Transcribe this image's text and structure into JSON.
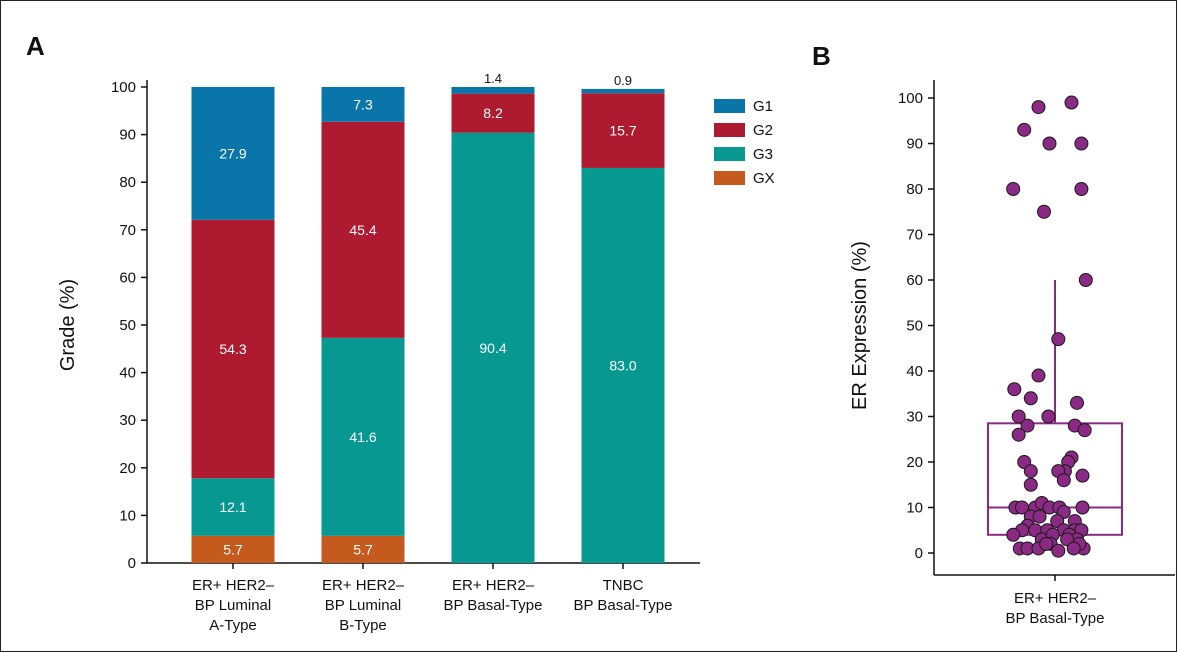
{
  "colors": {
    "G1": "#0a75a8",
    "G2": "#ae1a2f",
    "G3": "#079991",
    "GX": "#c55a1e",
    "scatter": "#8b2a85",
    "box": "#8b2a85"
  },
  "panel_labels": {
    "a": "A",
    "b": "B"
  },
  "chart_data": [
    {
      "type": "bar",
      "stacked": true,
      "panel": "A",
      "ylabel": "Grade (%)",
      "ylim": [
        0,
        100
      ],
      "yticks": [
        "0",
        "10",
        "20",
        "30",
        "40",
        "50",
        "60",
        "70",
        "80",
        "90",
        "100"
      ],
      "categories": [
        [
          "ER+ HER2–",
          "BP Luminal",
          "A-Type"
        ],
        [
          "ER+ HER2–",
          "BP Luminal",
          "B-Type"
        ],
        [
          "ER+ HER2–",
          "BP Basal-Type"
        ],
        [
          "TNBC",
          "BP Basal-Type"
        ]
      ],
      "series": [
        {
          "name": "GX",
          "values": [
            5.7,
            5.7,
            0,
            0
          ],
          "labels": [
            "5.7",
            "5.7",
            "",
            ""
          ]
        },
        {
          "name": "G3",
          "values": [
            12.1,
            41.6,
            90.4,
            83.0
          ],
          "labels": [
            "12.1",
            "41.6",
            "90.4",
            "83.0"
          ]
        },
        {
          "name": "G2",
          "values": [
            54.3,
            45.4,
            8.2,
            15.7
          ],
          "labels": [
            "54.3",
            "45.4",
            "8.2",
            "15.7"
          ]
        },
        {
          "name": "G1",
          "values": [
            27.9,
            7.3,
            1.4,
            0.9
          ],
          "labels": [
            "27.9",
            "7.3",
            "1.4",
            "0.9"
          ]
        }
      ],
      "legend": [
        "G1",
        "G2",
        "G3",
        "GX"
      ],
      "legend_position": "right",
      "grid": false
    },
    {
      "type": "box_scatter",
      "panel": "B",
      "ylabel": "ER Expression (%)",
      "ylim": [
        0,
        100
      ],
      "yticks": [
        "0",
        "10",
        "20",
        "30",
        "40",
        "50",
        "60",
        "70",
        "80",
        "90",
        "100"
      ],
      "category": [
        "ER+ HER2–",
        "BP Basal-Type"
      ],
      "box": {
        "whisker_low": 0,
        "q1": 4,
        "median": 10,
        "q3": 28.5,
        "whisker_high": 60
      },
      "points": [
        {
          "x": -0.15,
          "y": 98
        },
        {
          "x": 0.15,
          "y": 99
        },
        {
          "x": -0.28,
          "y": 93
        },
        {
          "x": -0.05,
          "y": 90
        },
        {
          "x": 0.24,
          "y": 90
        },
        {
          "x": -0.38,
          "y": 80
        },
        {
          "x": 0.24,
          "y": 80
        },
        {
          "x": -0.1,
          "y": 75
        },
        {
          "x": 0.28,
          "y": 60
        },
        {
          "x": 0.03,
          "y": 47
        },
        {
          "x": -0.15,
          "y": 39
        },
        {
          "x": -0.37,
          "y": 36
        },
        {
          "x": -0.22,
          "y": 34
        },
        {
          "x": 0.2,
          "y": 33
        },
        {
          "x": -0.33,
          "y": 30
        },
        {
          "x": -0.06,
          "y": 30
        },
        {
          "x": -0.25,
          "y": 28
        },
        {
          "x": 0.18,
          "y": 28
        },
        {
          "x": 0.27,
          "y": 27
        },
        {
          "x": -0.33,
          "y": 26
        },
        {
          "x": 0.15,
          "y": 21
        },
        {
          "x": -0.28,
          "y": 20
        },
        {
          "x": 0.12,
          "y": 20
        },
        {
          "x": 0.09,
          "y": 18
        },
        {
          "x": 0.03,
          "y": 18
        },
        {
          "x": -0.22,
          "y": 18
        },
        {
          "x": 0.25,
          "y": 17
        },
        {
          "x": 0.08,
          "y": 16
        },
        {
          "x": -0.22,
          "y": 15
        },
        {
          "x": -0.36,
          "y": 10
        },
        {
          "x": -0.3,
          "y": 10
        },
        {
          "x": -0.18,
          "y": 10
        },
        {
          "x": -0.12,
          "y": 11
        },
        {
          "x": -0.05,
          "y": 10
        },
        {
          "x": 0.04,
          "y": 10
        },
        {
          "x": 0.25,
          "y": 10
        },
        {
          "x": -0.22,
          "y": 8
        },
        {
          "x": 0.08,
          "y": 9
        },
        {
          "x": -0.14,
          "y": 8
        },
        {
          "x": -0.25,
          "y": 6
        },
        {
          "x": 0.18,
          "y": 7
        },
        {
          "x": 0.02,
          "y": 7
        },
        {
          "x": -0.3,
          "y": 5
        },
        {
          "x": -0.18,
          "y": 5
        },
        {
          "x": -0.07,
          "y": 5
        },
        {
          "x": 0.08,
          "y": 5
        },
        {
          "x": 0.18,
          "y": 5
        },
        {
          "x": 0.24,
          "y": 5
        },
        {
          "x": -0.38,
          "y": 4
        },
        {
          "x": -0.12,
          "y": 3
        },
        {
          "x": -0.02,
          "y": 4
        },
        {
          "x": 0.13,
          "y": 4
        },
        {
          "x": 0.2,
          "y": 3
        },
        {
          "x": -0.04,
          "y": 2
        },
        {
          "x": 0.11,
          "y": 3
        },
        {
          "x": 0.26,
          "y": 1
        },
        {
          "x": -0.32,
          "y": 1
        },
        {
          "x": -0.25,
          "y": 1
        },
        {
          "x": -0.15,
          "y": 1
        },
        {
          "x": -0.08,
          "y": 2
        },
        {
          "x": 0.03,
          "y": 0.5
        },
        {
          "x": 0.22,
          "y": 2
        },
        {
          "x": 0.17,
          "y": 1
        }
      ],
      "grid": false
    }
  ]
}
